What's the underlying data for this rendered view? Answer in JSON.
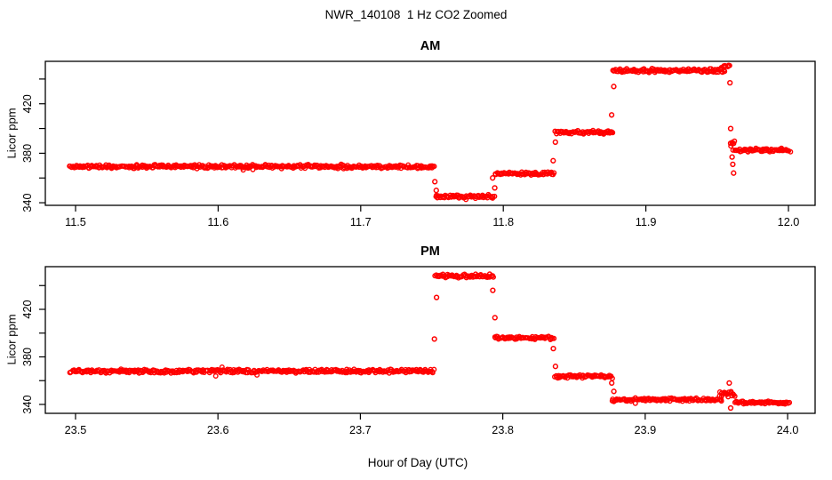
{
  "chart_data": {
    "type": "scatter",
    "title": "NWR_140108  1 Hz CO2 Zoomed",
    "xlabel": "Hour of Day (UTC)",
    "ylabel": "Licor ppm",
    "point_color": "#FF0000",
    "point_style": "open-circle",
    "grid": "off",
    "panels": [
      {
        "id": "am",
        "title": "AM",
        "xlim": [
          11.4788,
          12.0187
        ],
        "ylim": [
          337.9,
          454.3
        ],
        "xtick_values": [
          11.5,
          11.6,
          11.7,
          11.8,
          11.9,
          12.0
        ],
        "xtick_labels": [
          "11.5",
          "11.6",
          "11.7",
          "11.8",
          "11.9",
          "12.0"
        ],
        "ytick_labeled_values": [
          340,
          380,
          420
        ],
        "ytick_labels": [
          "340",
          "380",
          "420"
        ],
        "ytick_minor_values": [
          360,
          400,
          440
        ],
        "segments": [
          {
            "x0": 11.496,
            "x1": 11.7515,
            "v": 369.2,
            "s": 1.8
          },
          {
            "x0": 11.7525,
            "x1": 11.7935,
            "v": 345.0,
            "s": 1.6
          },
          {
            "x0": 11.7945,
            "x1": 11.8355,
            "v": 363.6,
            "s": 1.6
          },
          {
            "x0": 11.8365,
            "x1": 11.877,
            "v": 397.0,
            "s": 1.6
          },
          {
            "x0": 11.877,
            "x1": 11.9555,
            "v": 446.8,
            "s": 1.8
          },
          {
            "x0": 11.953,
            "x1": 11.959,
            "v": 450.0,
            "s": 1.8
          },
          {
            "x0": 11.959,
            "x1": 11.9625,
            "v": 387.5,
            "s": 3.2
          },
          {
            "x0": 11.9615,
            "x1": 12.001,
            "v": 382.5,
            "s": 1.6
          }
        ],
        "outliers": [
          [
            11.752,
            357
          ],
          [
            11.753,
            350
          ],
          [
            11.7925,
            360
          ],
          [
            11.794,
            352
          ],
          [
            11.835,
            374
          ],
          [
            11.8365,
            389
          ],
          [
            11.876,
            411
          ],
          [
            11.8775,
            434
          ],
          [
            11.959,
            437
          ],
          [
            11.9595,
            400
          ],
          [
            11.9605,
            377
          ],
          [
            11.961,
            371
          ],
          [
            11.9615,
            364
          ]
        ]
      },
      {
        "id": "pm",
        "title": "PM",
        "xlim": [
          23.4788,
          24.0193
        ],
        "ylim": [
          332.5,
          455.9
        ],
        "xtick_values": [
          23.5,
          23.6,
          23.7,
          23.8,
          23.9,
          24.0
        ],
        "xtick_labels": [
          "23.5",
          "23.6",
          "23.7",
          "23.8",
          "23.9",
          "24.0"
        ],
        "ytick_labeled_values": [
          340,
          380,
          420
        ],
        "ytick_labels": [
          "340",
          "380",
          "420"
        ],
        "ytick_minor_values": [
          360,
          400,
          440
        ],
        "segments": [
          {
            "x0": 23.496,
            "x1": 23.7515,
            "v": 368.0,
            "s": 1.8
          },
          {
            "x0": 23.7525,
            "x1": 23.793,
            "v": 448.0,
            "s": 1.8
          },
          {
            "x0": 23.794,
            "x1": 23.8355,
            "v": 396.0,
            "s": 1.6
          },
          {
            "x0": 23.8365,
            "x1": 23.877,
            "v": 363.5,
            "s": 1.6
          },
          {
            "x0": 23.877,
            "x1": 23.954,
            "v": 344.0,
            "s": 1.7
          },
          {
            "x0": 23.952,
            "x1": 23.963,
            "v": 348.5,
            "s": 3.0
          },
          {
            "x0": 23.963,
            "x1": 24.001,
            "v": 341.5,
            "s": 1.5
          }
        ],
        "outliers": [
          [
            23.752,
            395
          ],
          [
            23.7535,
            430
          ],
          [
            23.793,
            436
          ],
          [
            23.7945,
            413
          ],
          [
            23.8355,
            387
          ],
          [
            23.837,
            372
          ],
          [
            23.8765,
            358
          ],
          [
            23.878,
            351
          ],
          [
            23.959,
            358
          ],
          [
            23.96,
            337
          ]
        ]
      }
    ]
  }
}
